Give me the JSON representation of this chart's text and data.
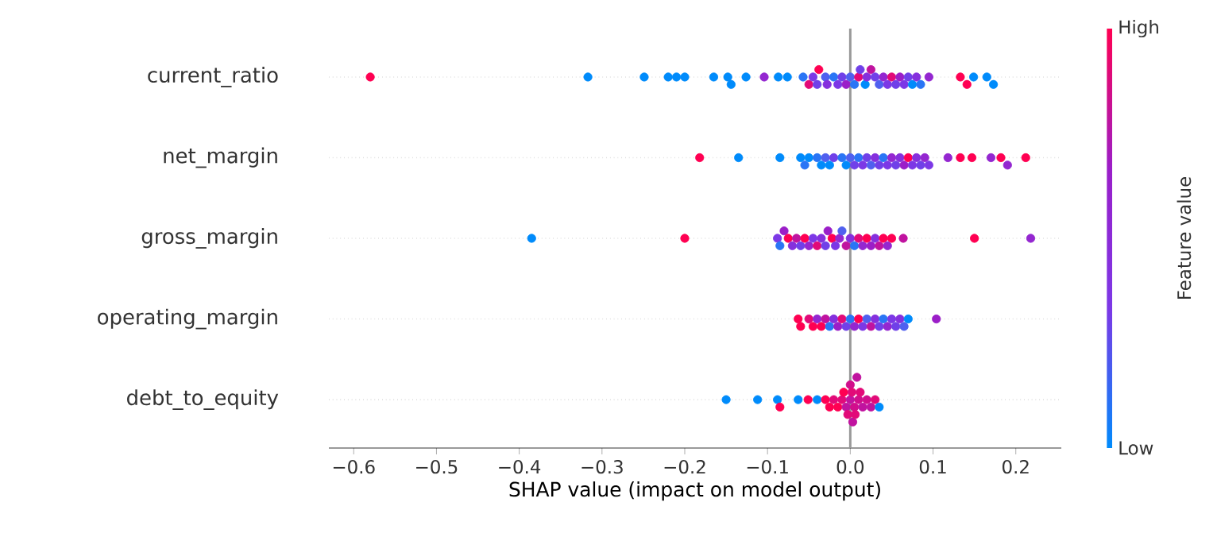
{
  "chart_data": {
    "type": "scatter",
    "orientation": "horizontal",
    "xlabel": "SHAP value (impact on model output)",
    "clabel": "Feature value",
    "categories": [
      "current_ratio",
      "net_margin",
      "gross_margin",
      "operating_margin",
      "debt_to_equity"
    ],
    "xlim": [
      -0.63,
      0.255
    ],
    "xticks": [
      {
        "value": -0.6,
        "label": "−0.6"
      },
      {
        "value": -0.5,
        "label": "−0.5"
      },
      {
        "value": -0.4,
        "label": "−0.4"
      },
      {
        "value": -0.3,
        "label": "−0.3"
      },
      {
        "value": -0.2,
        "label": "−0.2"
      },
      {
        "value": -0.1,
        "label": "−0.1"
      },
      {
        "value": 0,
        "label": "0.0"
      },
      {
        "value": 0.1,
        "label": "0.1"
      },
      {
        "value": 0.2,
        "label": "0.2"
      }
    ],
    "annotations": [
      "Low",
      "High"
    ],
    "grid": "y",
    "marker": "circle",
    "ref_lines": [
      {
        "axis": "x",
        "value": 0,
        "color": "#999999"
      }
    ],
    "series": [
      {
        "x": [
          "current_ratio",
          "current_ratio",
          "current_ratio",
          "current_ratio",
          "current_ratio",
          "current_ratio",
          "current_ratio",
          "current_ratio",
          "current_ratio",
          "current_ratio",
          "current_ratio",
          "current_ratio",
          "current_ratio",
          "current_ratio",
          "current_ratio",
          "current_ratio",
          "current_ratio",
          "current_ratio",
          "current_ratio",
          "current_ratio",
          "current_ratio",
          "current_ratio",
          "current_ratio",
          "current_ratio",
          "current_ratio",
          "current_ratio",
          "current_ratio",
          "current_ratio",
          "current_ratio",
          "current_ratio",
          "current_ratio",
          "current_ratio",
          "current_ratio",
          "current_ratio",
          "current_ratio",
          "current_ratio",
          "current_ratio",
          "current_ratio",
          "current_ratio",
          "current_ratio",
          "current_ratio",
          "current_ratio",
          "current_ratio",
          "current_ratio",
          "current_ratio",
          "current_ratio",
          "current_ratio",
          "current_ratio",
          "current_ratio"
        ],
        "values": [
          -0.58,
          -0.317,
          -0.249,
          -0.22,
          -0.21,
          -0.2,
          -0.165,
          -0.148,
          -0.144,
          -0.126,
          -0.104,
          -0.087,
          -0.076,
          -0.057,
          -0.05,
          -0.045,
          -0.04,
          -0.038,
          -0.03,
          -0.028,
          -0.02,
          -0.015,
          -0.01,
          -0.005,
          0.0,
          0.005,
          0.01,
          0.012,
          0.018,
          0.02,
          0.025,
          0.03,
          0.035,
          0.04,
          0.045,
          0.05,
          0.055,
          0.06,
          0.065,
          0.07,
          0.075,
          0.08,
          0.085,
          0.095,
          0.133,
          0.141,
          0.149,
          0.165,
          0.173
        ],
        "colors": [
          "#ff0052",
          "#008bfb",
          "#008bfb",
          "#008bfb",
          "#008bfb",
          "#008bfb",
          "#008bfb",
          "#008bfb",
          "#008bfb",
          "#008bfb",
          "#9427d0",
          "#008bfb",
          "#008bfb",
          "#2a75f5",
          "#e20a78",
          "#7c38e6",
          "#7040e8",
          "#ff0052",
          "#5060ef",
          "#8530dd",
          "#2a75f5",
          "#7c38e6",
          "#7040e8",
          "#9b1ec8",
          "#5060ef",
          "#2a75f5",
          "#e20a78",
          "#7040e8",
          "#008bfb",
          "#8530dd",
          "#c0139f",
          "#7040e8",
          "#5060ef",
          "#9427d0",
          "#7c38e6",
          "#e20a78",
          "#7040e8",
          "#9b1ec8",
          "#7c38e6",
          "#7040e8",
          "#008bfb",
          "#8530dd",
          "#2a75f5",
          "#9427d0",
          "#ff0052",
          "#ff0052",
          "#008bfb",
          "#008bfb",
          "#008bfb"
        ]
      },
      {
        "x": [
          "net_margin",
          "net_margin",
          "net_margin",
          "net_margin",
          "net_margin",
          "net_margin",
          "net_margin",
          "net_margin",
          "net_margin",
          "net_margin",
          "net_margin",
          "net_margin",
          "net_margin",
          "net_margin",
          "net_margin",
          "net_margin",
          "net_margin",
          "net_margin",
          "net_margin",
          "net_margin",
          "net_margin",
          "net_margin",
          "net_margin",
          "net_margin",
          "net_margin",
          "net_margin",
          "net_margin",
          "net_margin",
          "net_margin",
          "net_margin",
          "net_margin",
          "net_margin",
          "net_margin",
          "net_margin",
          "net_margin",
          "net_margin",
          "net_margin",
          "net_margin",
          "net_margin",
          "net_margin"
        ],
        "values": [
          -0.182,
          -0.135,
          -0.085,
          -0.06,
          -0.055,
          -0.05,
          -0.04,
          -0.035,
          -0.03,
          -0.025,
          -0.02,
          -0.01,
          -0.005,
          0.0,
          0.005,
          0.01,
          0.015,
          0.02,
          0.025,
          0.03,
          0.035,
          0.04,
          0.045,
          0.05,
          0.055,
          0.06,
          0.065,
          0.07,
          0.075,
          0.08,
          0.085,
          0.09,
          0.095,
          0.118,
          0.133,
          0.147,
          0.17,
          0.182,
          0.19,
          0.212
        ],
        "colors": [
          "#ff0052",
          "#008bfb",
          "#008bfb",
          "#008bfb",
          "#2a75f5",
          "#008bfb",
          "#2a75f5",
          "#008bfb",
          "#5060ef",
          "#008bfb",
          "#7040e8",
          "#2a75f5",
          "#008bfb",
          "#5060ef",
          "#7040e8",
          "#2a75f5",
          "#7c38e6",
          "#7040e8",
          "#5060ef",
          "#8530dd",
          "#7040e8",
          "#2a75f5",
          "#7c38e6",
          "#9427d0",
          "#7040e8",
          "#8530dd",
          "#9b1ec8",
          "#ff0052",
          "#7c38e6",
          "#8530dd",
          "#7040e8",
          "#9427d0",
          "#7c38e6",
          "#9427d0",
          "#ff0052",
          "#ff0052",
          "#9427d0",
          "#ff0052",
          "#9427d0",
          "#ff0052"
        ]
      },
      {
        "x": [
          "gross_margin",
          "gross_margin",
          "gross_margin",
          "gross_margin",
          "gross_margin",
          "gross_margin",
          "gross_margin",
          "gross_margin",
          "gross_margin",
          "gross_margin",
          "gross_margin",
          "gross_margin",
          "gross_margin",
          "gross_margin",
          "gross_margin",
          "gross_margin",
          "gross_margin",
          "gross_margin",
          "gross_margin",
          "gross_margin",
          "gross_margin",
          "gross_margin",
          "gross_margin",
          "gross_margin",
          "gross_margin",
          "gross_margin",
          "gross_margin",
          "gross_margin",
          "gross_margin",
          "gross_margin",
          "gross_margin",
          "gross_margin",
          "gross_margin",
          "gross_margin",
          "gross_margin"
        ],
        "values": [
          -0.385,
          -0.2,
          -0.088,
          -0.085,
          -0.08,
          -0.075,
          -0.07,
          -0.065,
          -0.06,
          -0.055,
          -0.05,
          -0.045,
          -0.04,
          -0.035,
          -0.03,
          -0.027,
          -0.022,
          -0.018,
          -0.013,
          -0.01,
          -0.005,
          0.0,
          0.005,
          0.01,
          0.015,
          0.02,
          0.025,
          0.03,
          0.035,
          0.04,
          0.045,
          0.05,
          0.064,
          0.15,
          0.218
        ],
        "colors": [
          "#008bfb",
          "#ff0052",
          "#7c38e6",
          "#2a75f5",
          "#9b1ec8",
          "#ff0052",
          "#8530dd",
          "#c0139f",
          "#7040e8",
          "#ff0052",
          "#9427d0",
          "#7c38e6",
          "#e20a78",
          "#8530dd",
          "#7040e8",
          "#9b1ec8",
          "#ff0052",
          "#7c38e6",
          "#9427d0",
          "#5060ef",
          "#c0139f",
          "#8530dd",
          "#2a75f5",
          "#e20a78",
          "#9427d0",
          "#ff0052",
          "#9b1ec8",
          "#8530dd",
          "#c0139f",
          "#ff0052",
          "#9427d0",
          "#ff0052",
          "#c0139f",
          "#ff0052",
          "#9427d0"
        ]
      },
      {
        "x": [
          "operating_margin",
          "operating_margin",
          "operating_margin",
          "operating_margin",
          "operating_margin",
          "operating_margin",
          "operating_margin",
          "operating_margin",
          "operating_margin",
          "operating_margin",
          "operating_margin",
          "operating_margin",
          "operating_margin",
          "operating_margin",
          "operating_margin",
          "operating_margin",
          "operating_margin",
          "operating_margin",
          "operating_margin",
          "operating_margin",
          "operating_margin",
          "operating_margin",
          "operating_margin",
          "operating_margin",
          "operating_margin",
          "operating_margin",
          "operating_margin",
          "operating_margin"
        ],
        "values": [
          -0.063,
          -0.06,
          -0.05,
          -0.045,
          -0.04,
          -0.035,
          -0.03,
          -0.025,
          -0.02,
          -0.015,
          -0.01,
          -0.005,
          0.0,
          0.005,
          0.01,
          0.015,
          0.02,
          0.025,
          0.03,
          0.035,
          0.04,
          0.045,
          0.05,
          0.055,
          0.06,
          0.065,
          0.07,
          0.104
        ],
        "colors": [
          "#ff0052",
          "#ff0052",
          "#e20a78",
          "#ff0052",
          "#9427d0",
          "#ff0052",
          "#c0139f",
          "#2a75f5",
          "#8530dd",
          "#9b1ec8",
          "#e20a78",
          "#7040e8",
          "#2a75f5",
          "#9427d0",
          "#ff0052",
          "#7c38e6",
          "#5060ef",
          "#c0139f",
          "#8530dd",
          "#7040e8",
          "#2a75f5",
          "#9427d0",
          "#7c38e6",
          "#7040e8",
          "#8530dd",
          "#5060ef",
          "#008bfb",
          "#9b1ec8"
        ]
      },
      {
        "x": [
          "debt_to_equity",
          "debt_to_equity",
          "debt_to_equity",
          "debt_to_equity",
          "debt_to_equity",
          "debt_to_equity",
          "debt_to_equity",
          "debt_to_equity",
          "debt_to_equity",
          "debt_to_equity",
          "debt_to_equity",
          "debt_to_equity",
          "debt_to_equity",
          "debt_to_equity",
          "debt_to_equity",
          "debt_to_equity",
          "debt_to_equity",
          "debt_to_equity",
          "debt_to_equity",
          "debt_to_equity",
          "debt_to_equity",
          "debt_to_equity",
          "debt_to_equity",
          "debt_to_equity",
          "debt_to_equity",
          "debt_to_equity",
          "debt_to_equity",
          "debt_to_equity",
          "debt_to_equity"
        ],
        "values": [
          -0.15,
          -0.112,
          -0.088,
          -0.085,
          -0.063,
          -0.051,
          -0.04,
          -0.03,
          -0.025,
          -0.02,
          -0.015,
          -0.01,
          -0.008,
          -0.005,
          -0.003,
          0.0,
          0.0,
          0.002,
          0.003,
          0.005,
          0.006,
          0.008,
          0.01,
          0.012,
          0.015,
          0.02,
          0.025,
          0.03,
          0.035
        ],
        "colors": [
          "#008bfb",
          "#008bfb",
          "#008bfb",
          "#ff0052",
          "#008bfb",
          "#ff0052",
          "#008bfb",
          "#ff0052",
          "#ff0052",
          "#e20a78",
          "#ff0052",
          "#e20a78",
          "#ff0052",
          "#c0139f",
          "#e20a78",
          "#c0139f",
          "#d10e8c",
          "#e20a78",
          "#c0139f",
          "#d10e8c",
          "#e20a78",
          "#c0139f",
          "#d10e8c",
          "#e20a78",
          "#c0139f",
          "#d10e8c",
          "#c0139f",
          "#e20a78",
          "#008bfb"
        ]
      }
    ]
  }
}
